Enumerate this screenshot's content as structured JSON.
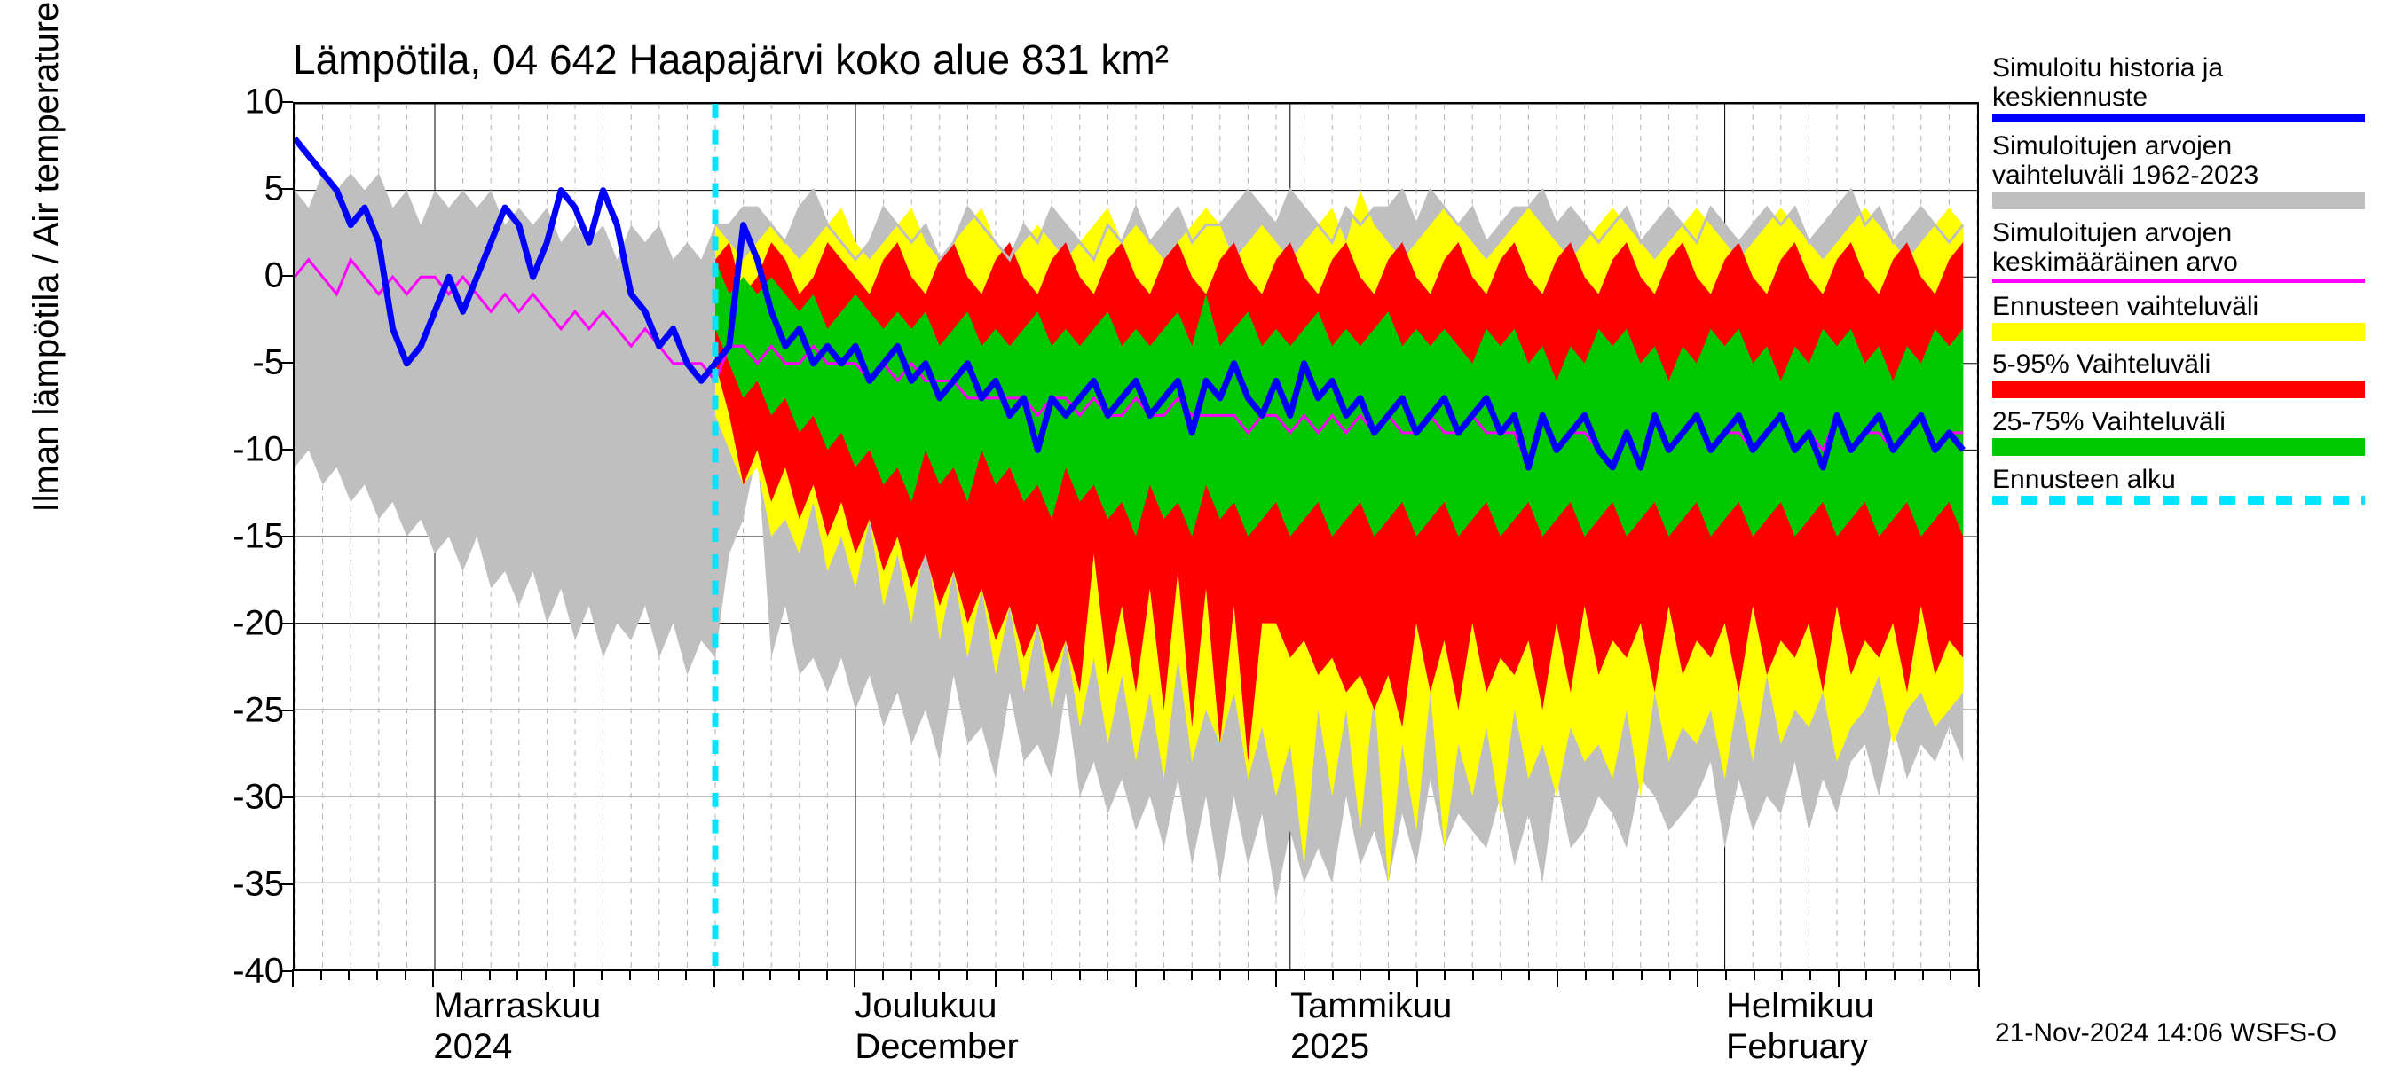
{
  "chart": {
    "type": "line-band",
    "title": "Lämpötila, 04 642 Haapajärvi koko alue 831 km²",
    "y_axis_label": "Ilman lämpötila / Air temperature    °C",
    "ylim": [
      -40,
      10
    ],
    "ytick_step": 5,
    "y_ticks": [
      10,
      5,
      0,
      -5,
      -10,
      -15,
      -20,
      -25,
      -30,
      -35,
      -40
    ],
    "x_days": 120,
    "x_minor_step_days": 2,
    "x_major_step_days": 10,
    "x_months": [
      {
        "line1": "Marraskuu",
        "line2": "2024",
        "day": 10
      },
      {
        "line1": "Joulukuu",
        "line2": "December",
        "day": 40
      },
      {
        "line1": "Tammikuu",
        "line2": "2025",
        "day": 71
      },
      {
        "line1": "Helmikuu",
        "line2": "February",
        "day": 102
      }
    ],
    "forecast_start_day": 30,
    "background_color": "#ffffff",
    "grid_minor_color": "#b0b0b0",
    "grid_major_color": "#000000",
    "axis_fontsize": 40,
    "title_fontsize": 46,
    "colors": {
      "blue": "#0000ff",
      "grey": "#bfbfbf",
      "magenta": "#ff00ff",
      "yellow": "#ffff00",
      "red": "#ff0000",
      "green": "#00c800",
      "cyan": "#00e5ff"
    },
    "line_widths": {
      "blue": 7,
      "magenta": 3,
      "cyan": 7,
      "grey_outline": 3
    },
    "series": {
      "hist_grey_hi": [
        5,
        4,
        6,
        5,
        6,
        5,
        6,
        4,
        5,
        3,
        5,
        4,
        5,
        4,
        5,
        3,
        4,
        3,
        4,
        2,
        3,
        2,
        3,
        1,
        3,
        2,
        3,
        1,
        2,
        1,
        3,
        3,
        4,
        4,
        3,
        2,
        4,
        5,
        3,
        2,
        1,
        2,
        4,
        3,
        2,
        3,
        1,
        2,
        4,
        3,
        2,
        1,
        3,
        2,
        4,
        3,
        2,
        1,
        3,
        2,
        4,
        2,
        3,
        4,
        2,
        3,
        3,
        4,
        5,
        4,
        3,
        5,
        4,
        3,
        2,
        4,
        3,
        4,
        4,
        5,
        3,
        5,
        4,
        3,
        4,
        2,
        3,
        4,
        4,
        5,
        3,
        4,
        3,
        2,
        3,
        4,
        2,
        3,
        4,
        3,
        2,
        4,
        3,
        2,
        3,
        4,
        3,
        4,
        2,
        3,
        4,
        5,
        3,
        4,
        2,
        3,
        4,
        3,
        2,
        3
      ],
      "hist_grey_lo": [
        -11,
        -10,
        -12,
        -11,
        -13,
        -12,
        -14,
        -13,
        -15,
        -14,
        -16,
        -15,
        -17,
        -15,
        -18,
        -17,
        -19,
        -17,
        -20,
        -18,
        -21,
        -19,
        -22,
        -20,
        -21,
        -19,
        -22,
        -20,
        -23,
        -21,
        -22,
        -16,
        -14,
        -10,
        -22,
        -19,
        -23,
        -22,
        -24,
        -22,
        -25,
        -23,
        -26,
        -24,
        -27,
        -25,
        -28,
        -23,
        -27,
        -26,
        -29,
        -24,
        -28,
        -27,
        -29,
        -24,
        -30,
        -28,
        -31,
        -29,
        -32,
        -30,
        -33,
        -29,
        -34,
        -30,
        -35,
        -30,
        -34,
        -31,
        -36,
        -32,
        -35,
        -33,
        -35,
        -30,
        -34,
        -32,
        -35,
        -31,
        -34,
        -29,
        -33,
        -31,
        -32,
        -33,
        -30,
        -34,
        -31,
        -35,
        -29,
        -33,
        -32,
        -30,
        -31,
        -33,
        -29,
        -30,
        -32,
        -31,
        -30,
        -28,
        -33,
        -29,
        -32,
        -30,
        -31,
        -28,
        -32,
        -29,
        -31,
        -28,
        -27,
        -30,
        -26,
        -29,
        -27,
        -28,
        -26,
        -28
      ],
      "yellow_hi": [
        3,
        2,
        1,
        2,
        3,
        2,
        1,
        2,
        3,
        4,
        2,
        1,
        2,
        3,
        4,
        2,
        1,
        2,
        3,
        4,
        2,
        1,
        2,
        3,
        2,
        1,
        2,
        3,
        4,
        2,
        3,
        2,
        1,
        2,
        3,
        4,
        3,
        1,
        2,
        3,
        2,
        1,
        2,
        3,
        4,
        2,
        5,
        3,
        2,
        1,
        2,
        3,
        4,
        3,
        2,
        1,
        2,
        3,
        4,
        3,
        2,
        1,
        2,
        3,
        4,
        3,
        2,
        1,
        2,
        3,
        4,
        3,
        2,
        1,
        2,
        3,
        4,
        3,
        2,
        1,
        2,
        3,
        4,
        3,
        2,
        1,
        2,
        3,
        4,
        3
      ],
      "yellow_lo": [
        -8,
        -10,
        -12,
        -11,
        -15,
        -14,
        -16,
        -13,
        -17,
        -15,
        -18,
        -14,
        -19,
        -16,
        -20,
        -15,
        -21,
        -17,
        -22,
        -18,
        -23,
        -19,
        -24,
        -20,
        -25,
        -21,
        -26,
        -22,
        -27,
        -23,
        -28,
        -24,
        -29,
        -22,
        -28,
        -25,
        -27,
        -24,
        -29,
        -26,
        -30,
        -27,
        -34,
        -25,
        -30,
        -25,
        -32,
        -24,
        -35,
        -27,
        -32,
        -24,
        -33,
        -27,
        -30,
        -26,
        -31,
        -25,
        -29,
        -27,
        -30,
        -26,
        -28,
        -27,
        -29,
        -25,
        -30,
        -24,
        -28,
        -26,
        -27,
        -25,
        -29,
        -24,
        -28,
        -23,
        -27,
        -25,
        -26,
        -24,
        -28,
        -26,
        -25,
        -23,
        -27,
        -25,
        -24,
        -26,
        -25,
        -24
      ],
      "red_hi": [
        1,
        2,
        -1,
        0,
        2,
        1,
        -1,
        0,
        2,
        1,
        0,
        -1,
        1,
        2,
        0,
        -1,
        1,
        2,
        0,
        -1,
        1,
        2,
        0,
        -1,
        1,
        2,
        0,
        -1,
        1,
        2,
        0,
        -1,
        1,
        2,
        0,
        -1,
        1,
        2,
        0,
        -1,
        1,
        2,
        0,
        -1,
        1,
        2,
        0,
        -1,
        1,
        2,
        0,
        -1,
        1,
        2,
        0,
        -1,
        1,
        2,
        0,
        -1,
        1,
        2,
        0,
        -1,
        1,
        2,
        0,
        -1,
        1,
        2,
        0,
        -1,
        1,
        2,
        0,
        -1,
        1,
        2,
        0,
        -1,
        1,
        2,
        0,
        -1,
        1,
        2,
        0,
        -1,
        1,
        2
      ],
      "red_lo": [
        -5,
        -8,
        -12,
        -10,
        -13,
        -11,
        -14,
        -12,
        -15,
        -13,
        -16,
        -14,
        -17,
        -15,
        -18,
        -16,
        -19,
        -17,
        -20,
        -18,
        -21,
        -19,
        -22,
        -20,
        -23,
        -21,
        -24,
        -16,
        -23,
        -19,
        -24,
        -18,
        -25,
        -17,
        -26,
        -18,
        -27,
        -19,
        -28,
        -20,
        -20,
        -22,
        -21,
        -23,
        -22,
        -24,
        -23,
        -25,
        -23,
        -26,
        -20,
        -24,
        -21,
        -25,
        -20,
        -24,
        -22,
        -23,
        -21,
        -25,
        -20,
        -24,
        -19,
        -23,
        -21,
        -22,
        -20,
        -24,
        -19,
        -23,
        -21,
        -22,
        -20,
        -24,
        -19,
        -23,
        -21,
        -22,
        -20,
        -24,
        -19,
        -23,
        -21,
        -22,
        -20,
        -24,
        -19,
        -23,
        -21,
        -22
      ],
      "green_hi": [
        1,
        -1,
        0,
        -1,
        0,
        -1,
        -2,
        -1,
        -3,
        -2,
        -1,
        -2,
        -3,
        -2,
        -3,
        -2,
        -4,
        -3,
        -2,
        -4,
        -3,
        -4,
        -3,
        -2,
        -4,
        -3,
        -4,
        -3,
        -2,
        -4,
        -3,
        -4,
        -3,
        -2,
        -4,
        -1,
        -4,
        -3,
        -2,
        -4,
        -3,
        -4,
        -3,
        -2,
        -4,
        -3,
        -4,
        -3,
        -2,
        -4,
        -3,
        -4,
        -3,
        -4,
        -5,
        -3,
        -4,
        -3,
        -5,
        -4,
        -6,
        -4,
        -5,
        -3,
        -4,
        -3,
        -5,
        -4,
        -6,
        -4,
        -5,
        -3,
        -4,
        -3,
        -5,
        -4,
        -6,
        -4,
        -5,
        -3,
        -4,
        -3,
        -5,
        -4,
        -6,
        -4,
        -5,
        -3,
        -4,
        -3
      ],
      "green_lo": [
        -3,
        -5,
        -7,
        -6,
        -8,
        -7,
        -9,
        -8,
        -10,
        -9,
        -11,
        -10,
        -12,
        -11,
        -13,
        -10,
        -12,
        -11,
        -13,
        -10,
        -12,
        -11,
        -13,
        -12,
        -14,
        -11,
        -13,
        -12,
        -14,
        -13,
        -15,
        -12,
        -14,
        -13,
        -15,
        -12,
        -14,
        -13,
        -15,
        -14,
        -13,
        -15,
        -14,
        -13,
        -15,
        -14,
        -13,
        -15,
        -14,
        -13,
        -15,
        -14,
        -13,
        -15,
        -14,
        -13,
        -15,
        -14,
        -13,
        -15,
        -14,
        -13,
        -15,
        -14,
        -13,
        -15,
        -14,
        -13,
        -15,
        -14,
        -13,
        -15,
        -14,
        -13,
        -15,
        -14,
        -13,
        -15,
        -14,
        -13,
        -15,
        -14,
        -13,
        -15,
        -14,
        -13,
        -15,
        -14,
        -13,
        -15
      ],
      "blue": [
        8,
        7,
        6,
        5,
        3,
        4,
        2,
        -3,
        -5,
        -4,
        -2,
        0,
        -2,
        0,
        2,
        4,
        3,
        0,
        2,
        5,
        4,
        2,
        5,
        3,
        -1,
        -2,
        -4,
        -3,
        -5,
        -6,
        -5,
        -4,
        3,
        1,
        -2,
        -4,
        -3,
        -5,
        -4,
        -5,
        -4,
        -6,
        -5,
        -4,
        -6,
        -5,
        -7,
        -6,
        -5,
        -7,
        -6,
        -8,
        -7,
        -10,
        -7,
        -8,
        -7,
        -6,
        -8,
        -7,
        -6,
        -8,
        -7,
        -6,
        -9,
        -6,
        -7,
        -5,
        -7,
        -8,
        -6,
        -8,
        -5,
        -7,
        -6,
        -8,
        -7,
        -9,
        -8,
        -7,
        -9,
        -8,
        -7,
        -9,
        -8,
        -7,
        -9,
        -8,
        -11,
        -8,
        -10,
        -9,
        -8,
        -10,
        -11,
        -9,
        -11,
        -8,
        -10,
        -9,
        -8,
        -10,
        -9,
        -8,
        -10,
        -9,
        -8,
        -10,
        -9,
        -11,
        -8,
        -10,
        -9,
        -8,
        -10,
        -9,
        -8,
        -10,
        -9,
        -10
      ],
      "magenta": [
        0,
        1,
        0,
        -1,
        1,
        0,
        -1,
        0,
        -1,
        0,
        0,
        -1,
        0,
        -1,
        -2,
        -1,
        -2,
        -1,
        -2,
        -3,
        -2,
        -3,
        -2,
        -3,
        -4,
        -3,
        -4,
        -5,
        -5,
        -5,
        -6,
        -4,
        -4,
        -5,
        -4,
        -5,
        -5,
        -4,
        -5,
        -5,
        -5,
        -6,
        -5,
        -6,
        -5,
        -6,
        -6,
        -6,
        -7,
        -7,
        -7,
        -7,
        -7,
        -8,
        -7,
        -7,
        -8,
        -7,
        -8,
        -8,
        -7,
        -8,
        -8,
        -7,
        -8,
        -8,
        -8,
        -8,
        -9,
        -8,
        -8,
        -9,
        -8,
        -9,
        -8,
        -9,
        -8,
        -9,
        -8,
        -9,
        -9,
        -8,
        -9,
        -9,
        -8,
        -9,
        -9,
        -9,
        -11,
        -8,
        -10,
        -9,
        -9,
        -10,
        -11,
        -9,
        -11,
        -8,
        -10,
        -9,
        -8,
        -10,
        -9,
        -9,
        -10,
        -9,
        -8,
        -10,
        -9,
        -10,
        -8,
        -10,
        -9,
        -9,
        -10,
        -9,
        -8,
        -10,
        -9,
        -9
      ]
    }
  },
  "legend": {
    "items": [
      {
        "label_l1": "Simuloitu historia ja",
        "label_l2": "keskiennuste",
        "swatch": "line-blue"
      },
      {
        "label_l1": "Simuloitujen arvojen",
        "label_l2": "vaihteluväli 1962-2023",
        "swatch": "band-grey"
      },
      {
        "label_l1": "Simuloitujen arvojen",
        "label_l2": "keskimääräinen arvo",
        "swatch": "line-magenta"
      },
      {
        "label_l1": "Ennusteen vaihteluväli",
        "label_l2": "",
        "swatch": "band-yellow"
      },
      {
        "label_l1": "5-95% Vaihteluväli",
        "label_l2": "",
        "swatch": "band-red"
      },
      {
        "label_l1": "25-75% Vaihteluväli",
        "label_l2": "",
        "swatch": "band-green"
      },
      {
        "label_l1": "Ennusteen alku",
        "label_l2": "",
        "swatch": "line-cyan-dash"
      }
    ]
  },
  "footer": "21-Nov-2024 14:06 WSFS-O"
}
